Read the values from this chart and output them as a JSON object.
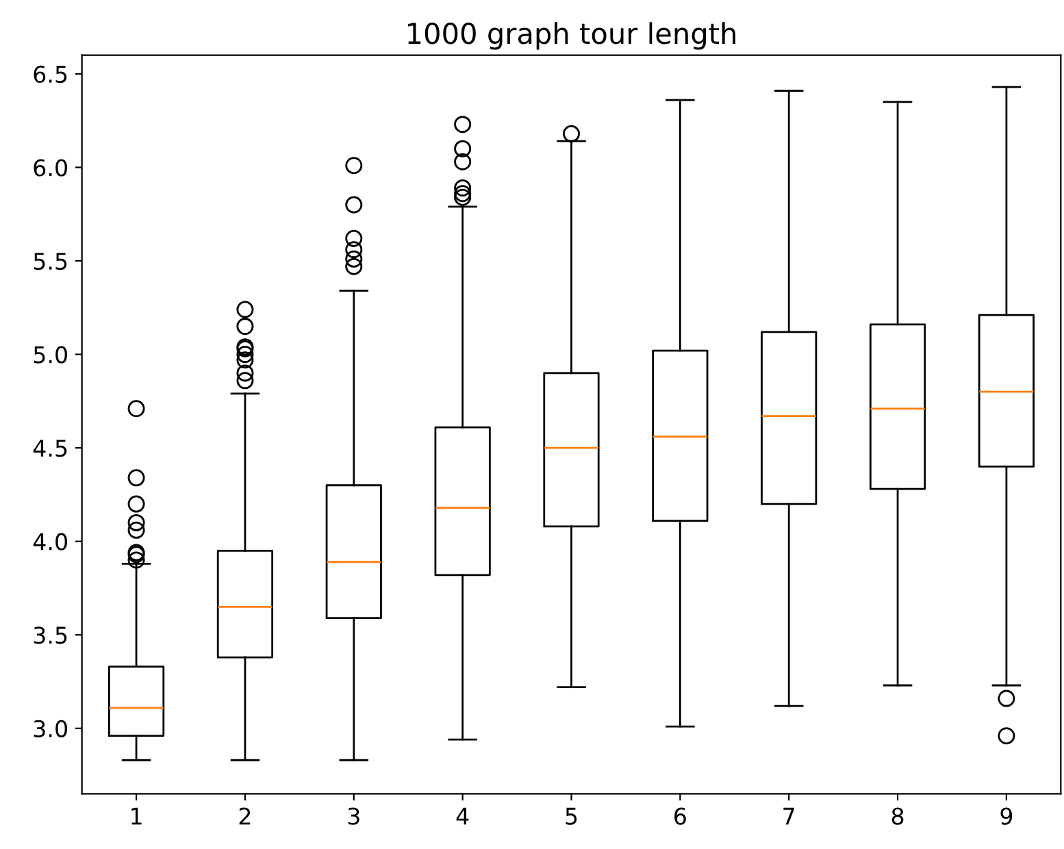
{
  "chart_data": {
    "type": "box",
    "title": "1000 graph tour length",
    "categories": [
      "1",
      "2",
      "3",
      "4",
      "5",
      "6",
      "7",
      "8",
      "9"
    ],
    "ylim": [
      2.65,
      6.6
    ],
    "yticks": [
      {
        "value": 3.0,
        "label": "3.0"
      },
      {
        "value": 3.5,
        "label": "3.5"
      },
      {
        "value": 4.0,
        "label": "4.0"
      },
      {
        "value": 4.5,
        "label": "4.5"
      },
      {
        "value": 5.0,
        "label": "5.0"
      },
      {
        "value": 5.5,
        "label": "5.5"
      },
      {
        "value": 6.0,
        "label": "6.0"
      },
      {
        "value": 6.5,
        "label": "6.5"
      }
    ],
    "grid": false,
    "series": [
      {
        "boxes": [
          {
            "low": 2.83,
            "q1": 2.96,
            "median": 3.11,
            "q3": 3.33,
            "high": 3.88,
            "outliers": [
              3.9,
              3.93,
              3.94,
              4.06,
              4.1,
              4.2,
              4.34,
              4.71
            ]
          },
          {
            "low": 2.83,
            "q1": 3.38,
            "median": 3.65,
            "q3": 3.95,
            "high": 4.79,
            "outliers": [
              4.86,
              4.9,
              4.97,
              5.0,
              5.03,
              5.04,
              5.15,
              5.24
            ]
          },
          {
            "low": 2.83,
            "q1": 3.59,
            "median": 3.89,
            "q3": 4.3,
            "high": 5.34,
            "outliers": [
              5.47,
              5.51,
              5.56,
              5.62,
              5.8,
              6.01
            ]
          },
          {
            "low": 2.94,
            "q1": 3.82,
            "median": 4.18,
            "q3": 4.61,
            "high": 5.79,
            "outliers": [
              5.84,
              5.86,
              5.89,
              6.03,
              6.1,
              6.23
            ]
          },
          {
            "low": 3.22,
            "q1": 4.08,
            "median": 4.5,
            "q3": 4.9,
            "high": 6.14,
            "outliers": [
              6.18
            ]
          },
          {
            "low": 3.01,
            "q1": 4.11,
            "median": 4.56,
            "q3": 5.02,
            "high": 6.36
          },
          {
            "low": 3.12,
            "q1": 4.2,
            "median": 4.67,
            "q3": 5.12,
            "high": 6.41
          },
          {
            "low": 3.23,
            "q1": 4.28,
            "median": 4.71,
            "q3": 5.16,
            "high": 6.35
          },
          {
            "low": 3.23,
            "q1": 4.4,
            "median": 4.8,
            "q3": 5.21,
            "high": 6.43,
            "outliers": [
              3.16,
              2.96
            ]
          }
        ]
      }
    ]
  }
}
